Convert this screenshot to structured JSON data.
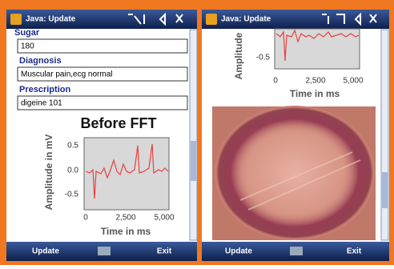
{
  "left_screen": {
    "title_bar": "Java: Update",
    "form": {
      "fields": [
        {
          "label": "Sugar",
          "value": "180"
        },
        {
          "label": "Diagnosis",
          "value": "Muscular pain,ecg normal"
        },
        {
          "label": "Prescription",
          "value": "digeine 101"
        }
      ]
    },
    "chart": {
      "title": "Before FFT",
      "y_label": "Amplitude in mV",
      "x_label": "Time in ms",
      "yticks": [
        "0.5",
        "0.0",
        "-0.5"
      ],
      "xticks": [
        "0",
        "2,500",
        "5,000"
      ]
    },
    "softkeys": {
      "left": "Update",
      "right": "Exit"
    }
  },
  "right_screen": {
    "title_bar": "Java: Update",
    "chart": {
      "y_label": "Amplitude",
      "x_label": "Time in ms",
      "yticks": [
        "-0.5"
      ],
      "xticks": [
        "0",
        "2,500",
        "5,000"
      ]
    },
    "softkeys": {
      "left": "Update",
      "right": "Exit"
    }
  }
}
